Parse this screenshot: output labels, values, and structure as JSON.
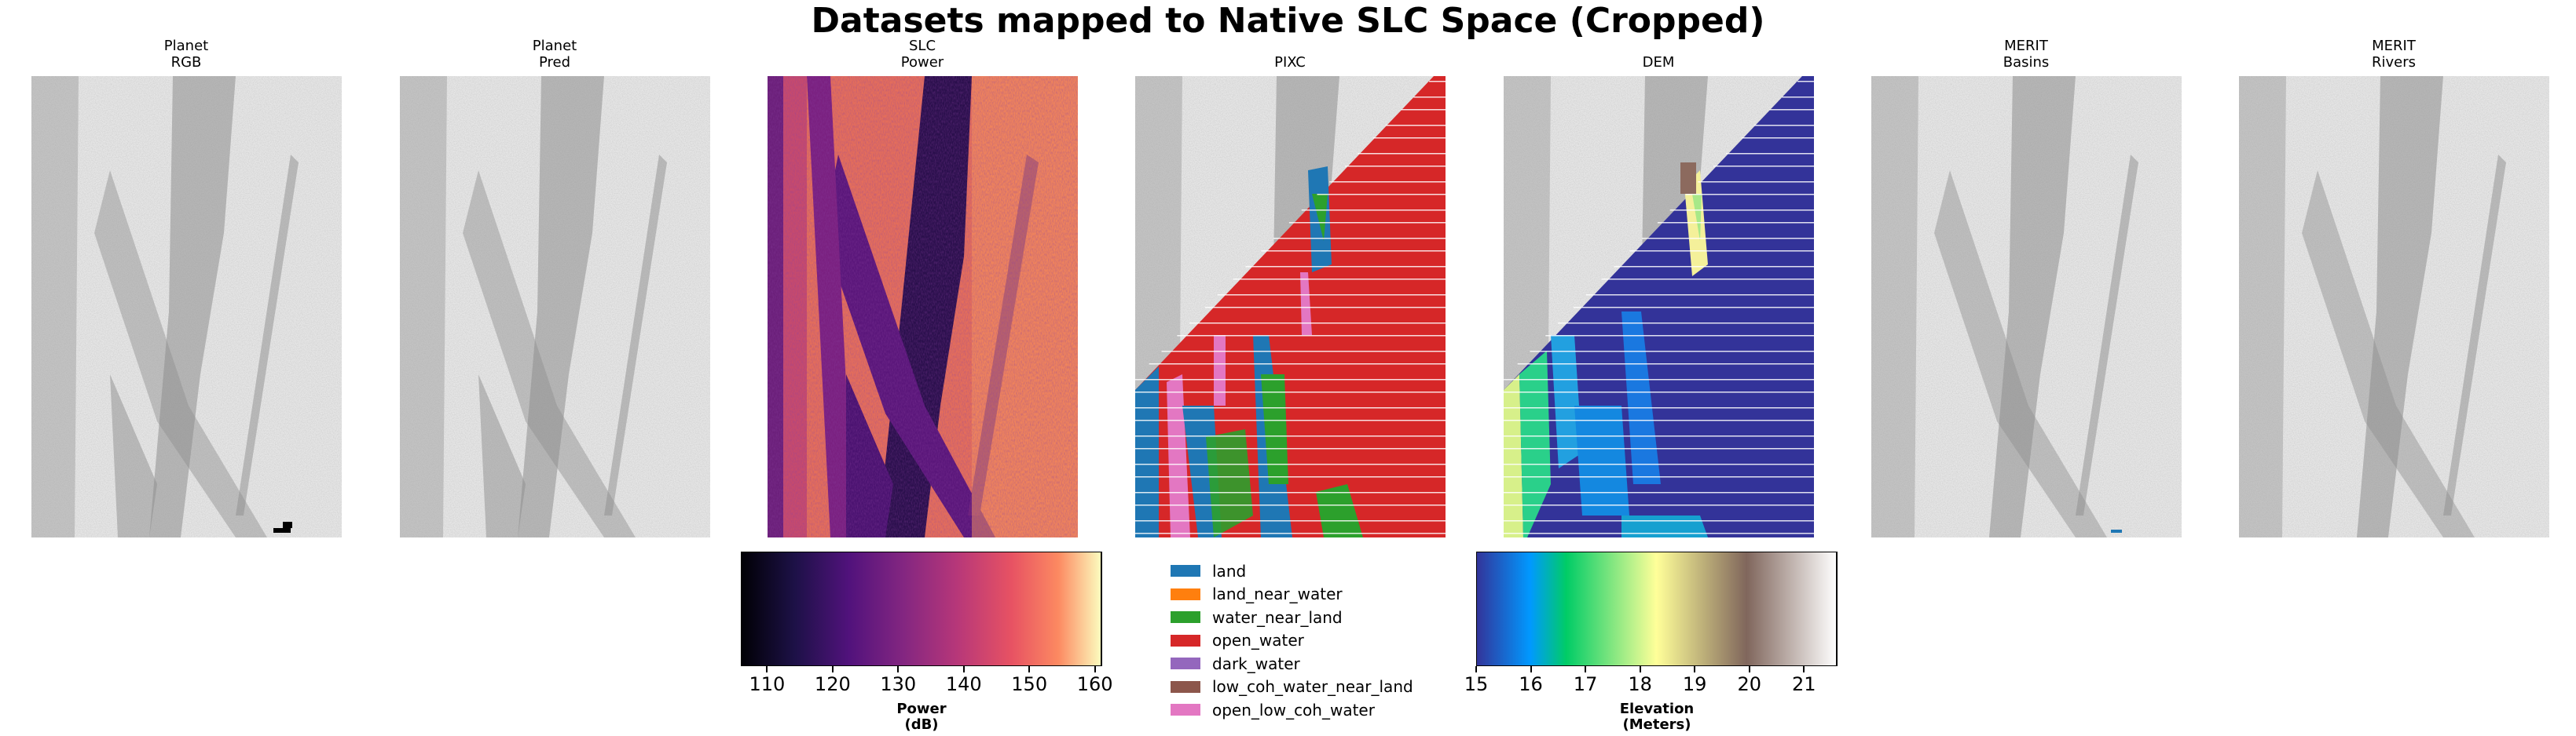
{
  "title": "Datasets mapped to Native SLC Space (Cropped)",
  "panels": [
    {
      "line1": "Planet",
      "line2": "RGB",
      "kind": "gray"
    },
    {
      "line1": "Planet",
      "line2": "Pred",
      "kind": "gray"
    },
    {
      "line1": "SLC",
      "line2": "Power",
      "kind": "power"
    },
    {
      "line1": "",
      "line2": "PIXC",
      "kind": "pixc"
    },
    {
      "line1": "",
      "line2": "DEM",
      "kind": "dem"
    },
    {
      "line1": "MERIT",
      "line2": "Basins",
      "kind": "gray"
    },
    {
      "line1": "MERIT",
      "line2": "Rivers",
      "kind": "gray"
    }
  ],
  "power_colorbar": {
    "ticks": [
      "110",
      "120",
      "130",
      "140",
      "150",
      "160"
    ],
    "tick_values": [
      110,
      120,
      130,
      140,
      150,
      160
    ],
    "range": [
      106,
      161
    ],
    "label_line1": "Power",
    "label_line2": "(dB)",
    "colormap": "magma"
  },
  "elevation_colorbar": {
    "ticks": [
      "15",
      "16",
      "17",
      "18",
      "19",
      "20",
      "21"
    ],
    "tick_values": [
      15,
      16,
      17,
      18,
      19,
      20,
      21
    ],
    "range": [
      15,
      21.6
    ],
    "label_line1": "Elevation",
    "label_line2": "(Meters)",
    "colormap": "terrain"
  },
  "pixc_legend": [
    {
      "label": "land",
      "color": "#1f77b4"
    },
    {
      "label": "land_near_water",
      "color": "#ff7f0e"
    },
    {
      "label": "water_near_land",
      "color": "#2ca02c"
    },
    {
      "label": "open_water",
      "color": "#d62728"
    },
    {
      "label": "dark_water",
      "color": "#9467bd"
    },
    {
      "label": "low_coh_water_near_land",
      "color": "#8c564b"
    },
    {
      "label": "open_low_coh_water",
      "color": "#e377c2"
    }
  ],
  "chart_data": {
    "type": "heatmap",
    "title": "Datasets mapped to Native SLC Space (Cropped)",
    "subplots": [
      "Planet RGB",
      "Planet Pred",
      "SLC Power",
      "PIXC",
      "DEM",
      "MERIT Basins",
      "MERIT Rivers"
    ],
    "colorbars": [
      {
        "quantity": "Power (dB)",
        "min": 106,
        "max": 161,
        "ticks": [
          110,
          120,
          130,
          140,
          150,
          160
        ]
      },
      {
        "quantity": "Elevation (Meters)",
        "min": 15,
        "max": 21.6,
        "ticks": [
          15,
          16,
          17,
          18,
          19,
          20,
          21
        ]
      }
    ],
    "categories": [
      "land",
      "land_near_water",
      "water_near_land",
      "open_water",
      "dark_water",
      "low_coh_water_near_land",
      "open_low_coh_water"
    ]
  }
}
